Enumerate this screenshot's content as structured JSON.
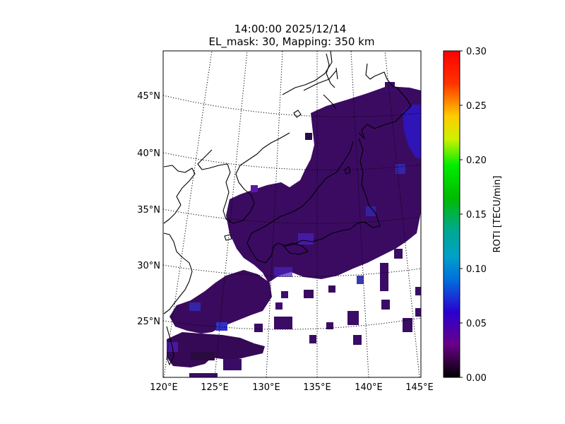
{
  "title": {
    "line1": "14:00:00 2025/12/14",
    "line2": "EL_mask: 30, Mapping: 350 km"
  },
  "map": {
    "lon_range": [
      120,
      145
    ],
    "lat_range": [
      20,
      49
    ],
    "lon_ticks": [
      {
        "value": 120,
        "label": "120°E"
      },
      {
        "value": 125,
        "label": "125°E"
      },
      {
        "value": 130,
        "label": "130°E"
      },
      {
        "value": 135,
        "label": "135°E"
      },
      {
        "value": 140,
        "label": "140°E"
      },
      {
        "value": 145,
        "label": "145°E"
      }
    ],
    "lat_ticks": [
      {
        "value": 25,
        "label": "25°N"
      },
      {
        "value": 30,
        "label": "30°N"
      },
      {
        "value": 35,
        "label": "35°N"
      },
      {
        "value": 40,
        "label": "40°N"
      },
      {
        "value": 45,
        "label": "45°N"
      }
    ],
    "graticule_style": "dotted",
    "projection": "conic"
  },
  "colorbar": {
    "label": "ROTI [TECU/min]",
    "range": [
      0.0,
      0.3
    ],
    "colormap": "nipy_spectral",
    "ticks": [
      {
        "value": 0.0,
        "label": "0.00"
      },
      {
        "value": 0.05,
        "label": "0.05"
      },
      {
        "value": 0.1,
        "label": "0.10"
      },
      {
        "value": 0.15,
        "label": "0.15"
      },
      {
        "value": 0.2,
        "label": "0.20"
      },
      {
        "value": 0.25,
        "label": "0.25"
      },
      {
        "value": 0.3,
        "label": "0.30"
      }
    ]
  },
  "roti_field": {
    "dominant_value_range": [
      0.02,
      0.05
    ],
    "dominant_color": "#3a0a5e",
    "regions": [
      {
        "name": "japan-mainland",
        "lon": [
          128,
          145
        ],
        "lat": [
          30,
          46
        ],
        "roti": 0.035
      },
      {
        "name": "korea-east-china-sea",
        "lon": [
          124,
          132
        ],
        "lat": [
          29,
          37
        ],
        "roti": 0.035
      },
      {
        "name": "taiwan-ryukyu",
        "lon": [
          120,
          130
        ],
        "lat": [
          21,
          29
        ],
        "roti": 0.03
      },
      {
        "name": "hokkaido-east-enhanced",
        "lon": [
          142,
          145
        ],
        "lat": [
          40,
          45
        ],
        "roti": 0.06
      }
    ]
  }
}
